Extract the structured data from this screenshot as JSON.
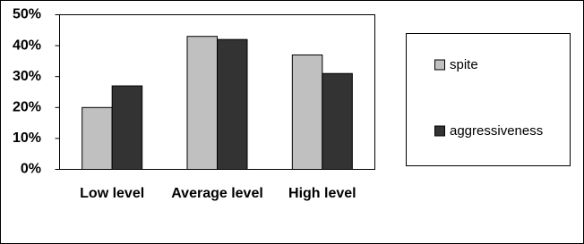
{
  "chart_data": {
    "type": "bar",
    "categories": [
      "Low level",
      "Average level",
      "High level"
    ],
    "series": [
      {
        "name": "spite",
        "color": "#c0c0c0",
        "values": [
          20,
          43,
          37
        ]
      },
      {
        "name": "aggressiveness",
        "color": "#333333",
        "values": [
          27,
          42,
          31
        ]
      }
    ],
    "ylim": [
      0,
      50
    ],
    "yticks": [
      {
        "value": 0,
        "label": "0%"
      },
      {
        "value": 10,
        "label": "10%"
      },
      {
        "value": 20,
        "label": "20%"
      },
      {
        "value": 30,
        "label": "30%"
      },
      {
        "value": 40,
        "label": "40%"
      },
      {
        "value": 50,
        "label": "50%"
      }
    ],
    "grid": false,
    "legend": "right"
  }
}
